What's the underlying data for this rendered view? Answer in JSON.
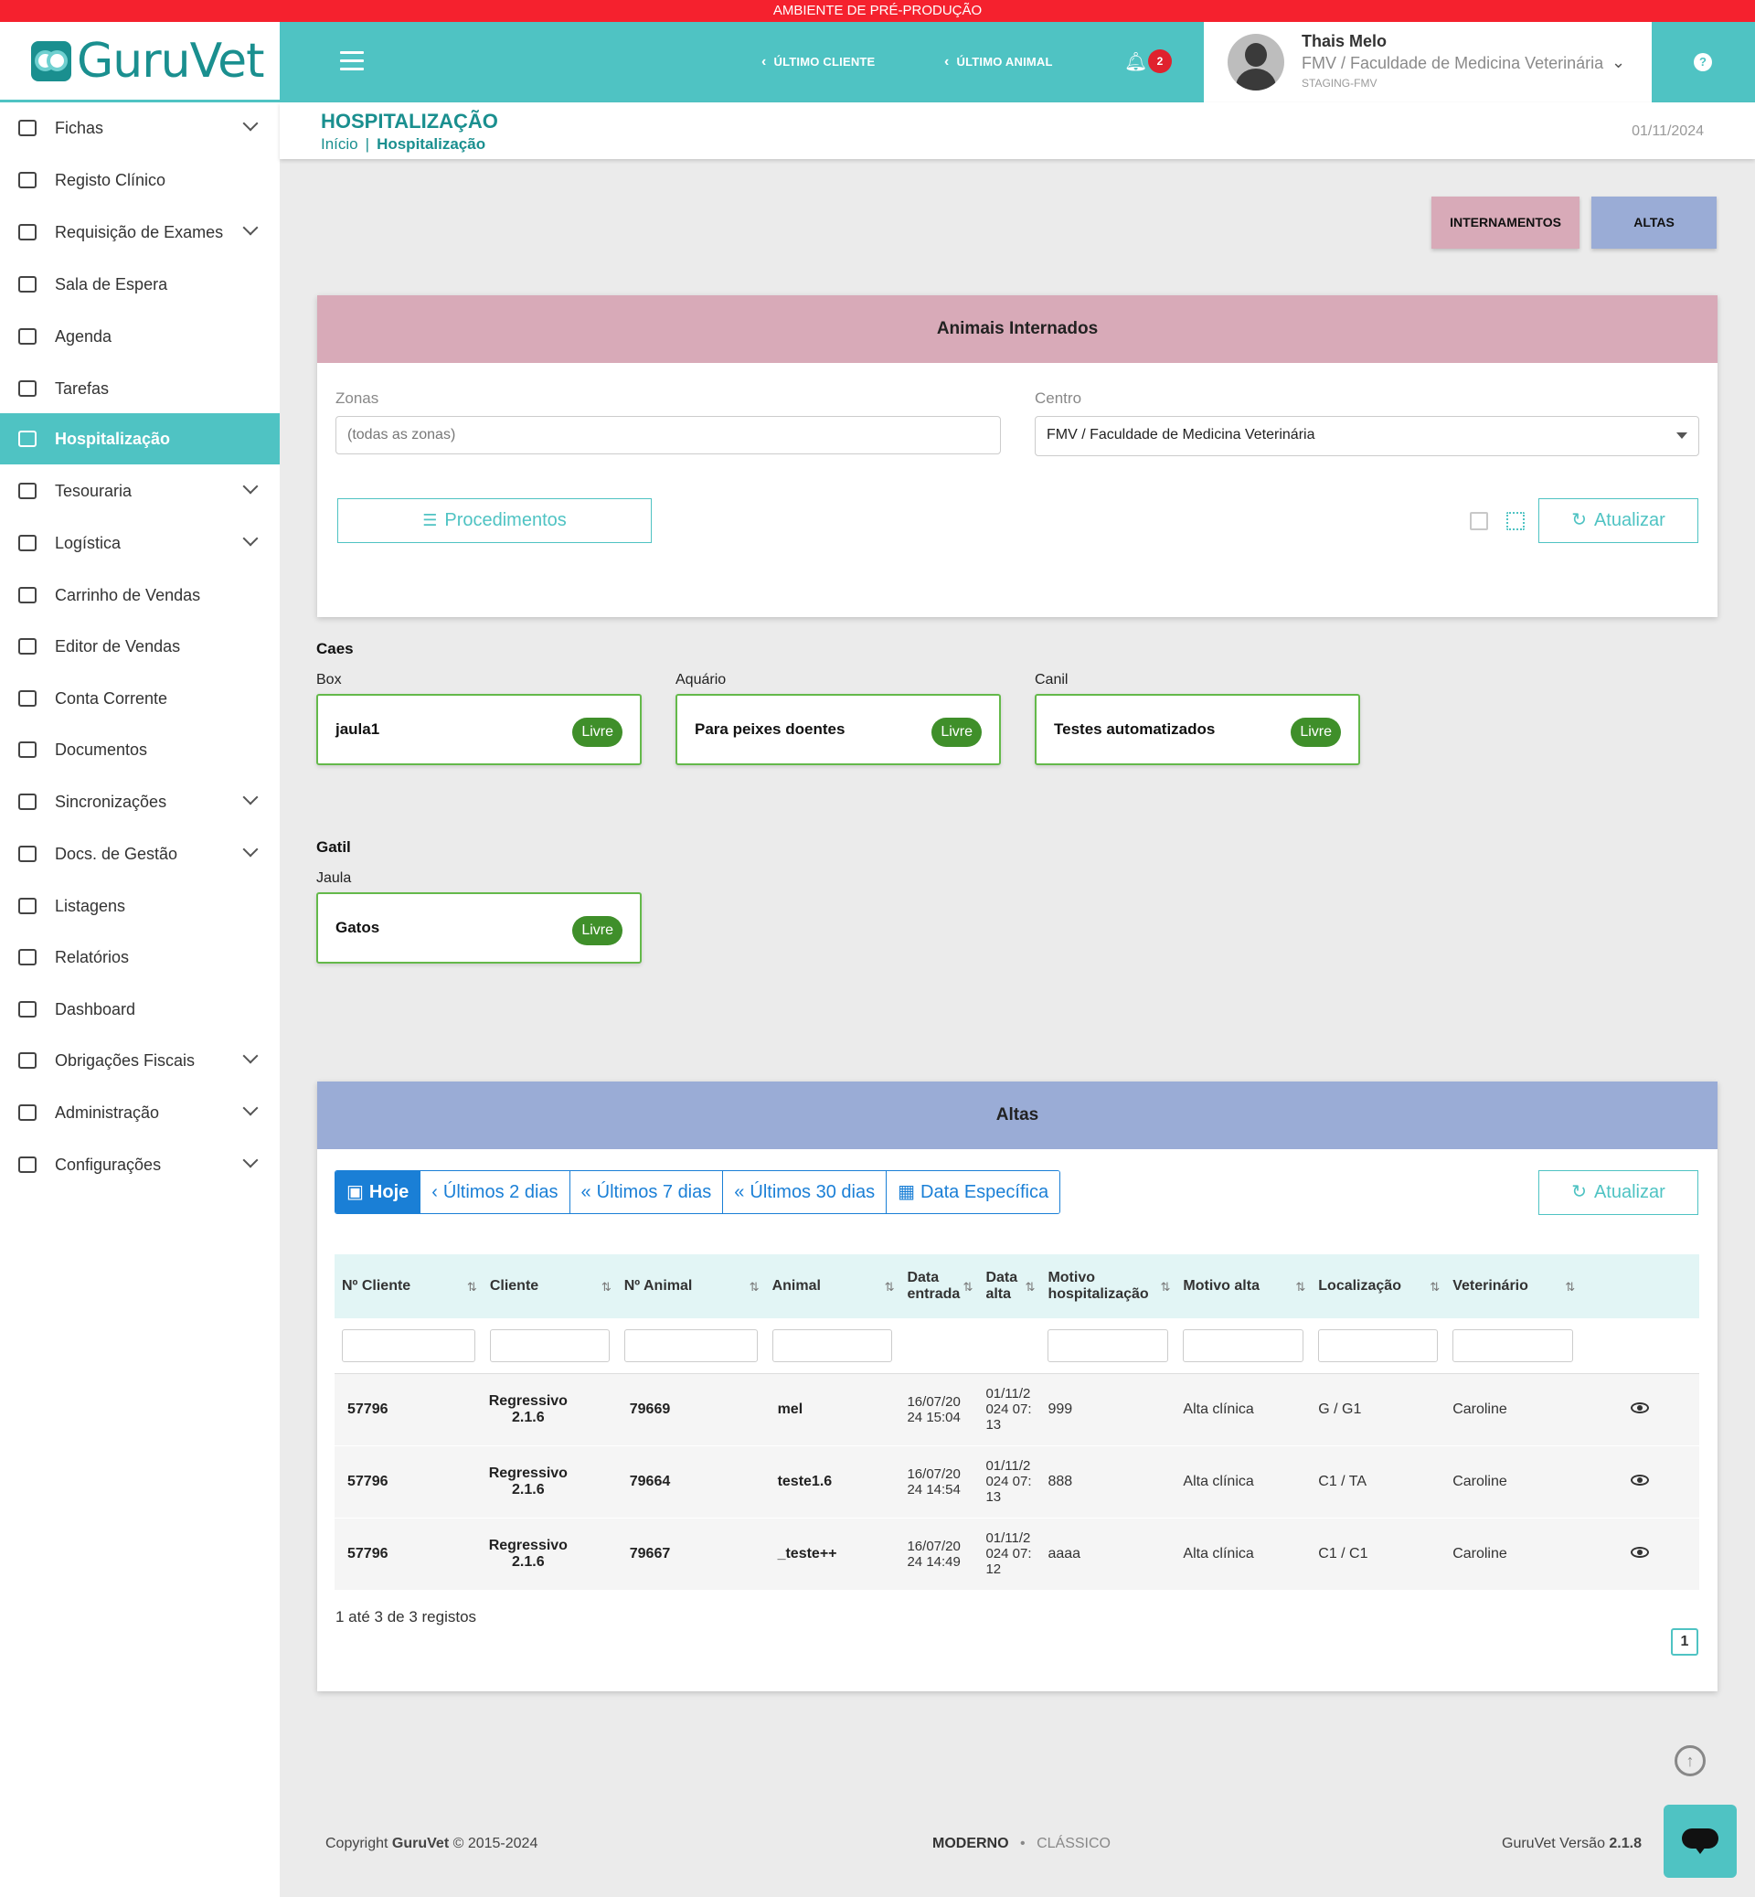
{
  "env_banner": "AMBIENTE DE PRÉ-PRODUÇÃO",
  "logo": {
    "text": "GuruVet"
  },
  "topbar": {
    "last_client": "ÚLTIMO CLIENTE",
    "last_animal": "ÚLTIMO ANIMAL",
    "notifications": "2"
  },
  "user": {
    "name": "Thais Melo",
    "org": "FMV / Faculdade de Medicina Veterinária",
    "env": "STAGING-FMV"
  },
  "help": "?",
  "sidebar": {
    "items": [
      {
        "label": "Fichas",
        "expandable": true
      },
      {
        "label": "Registo Clínico",
        "expandable": false
      },
      {
        "label": "Requisição de Exames",
        "expandable": true
      },
      {
        "label": "Sala de Espera",
        "expandable": false
      },
      {
        "label": "Agenda",
        "expandable": false
      },
      {
        "label": "Tarefas",
        "expandable": false
      },
      {
        "label": "Hospitalização",
        "expandable": false,
        "active": true
      },
      {
        "label": "Tesouraria",
        "expandable": true
      },
      {
        "label": "Logística",
        "expandable": true
      },
      {
        "label": "Carrinho de Vendas",
        "expandable": false
      },
      {
        "label": "Editor de Vendas",
        "expandable": false
      },
      {
        "label": "Conta Corrente",
        "expandable": false
      },
      {
        "label": "Documentos",
        "expandable": false
      },
      {
        "label": "Sincronizações",
        "expandable": true
      },
      {
        "label": "Docs. de Gestão",
        "expandable": true
      },
      {
        "label": "Listagens",
        "expandable": false
      },
      {
        "label": "Relatórios",
        "expandable": false
      },
      {
        "label": "Dashboard",
        "expandable": false
      },
      {
        "label": "Obrigações Fiscais",
        "expandable": true
      },
      {
        "label": "Administração",
        "expandable": true
      },
      {
        "label": "Configurações",
        "expandable": true
      }
    ]
  },
  "header": {
    "title": "HOSPITALIZAÇÃO",
    "breadcrumb_home": "Início",
    "breadcrumb_sep": "|",
    "breadcrumb_current": "Hospitalização",
    "date": "01/11/2024"
  },
  "actions": {
    "internamentos": "INTERNAMENTOS",
    "altas": "ALTAS"
  },
  "internados": {
    "title": "Animais Internados",
    "zonas_label": "Zonas",
    "zonas_placeholder": "(todas as zonas)",
    "centro_label": "Centro",
    "centro_value": "FMV / Faculdade de Medicina Veterinária",
    "procedimentos": "Procedimentos",
    "atualizar": "Atualizar"
  },
  "groups": [
    {
      "title": "Caes",
      "cages": [
        {
          "zone": "Box",
          "name": "jaula1",
          "status": "Livre"
        },
        {
          "zone": "Aquário",
          "name": "Para peixes doentes",
          "status": "Livre"
        },
        {
          "zone": "Canil",
          "name": "Testes automatizados",
          "status": "Livre"
        }
      ]
    },
    {
      "title": "Gatil",
      "cages": [
        {
          "zone": "Jaula",
          "name": "Gatos",
          "status": "Livre"
        }
      ]
    }
  ],
  "altas": {
    "title": "Altas",
    "filters": [
      "Hoje",
      "Últimos 2 dias",
      "Últimos 7 dias",
      "Últimos 30 dias",
      "Data Específica"
    ],
    "atualizar": "Atualizar",
    "columns": [
      "Nº Cliente",
      "Cliente",
      "Nº Animal",
      "Animal",
      "Data entrada",
      "Data alta",
      "Motivo hospitalização",
      "Motivo alta",
      "Localização",
      "Veterinário"
    ],
    "rows": [
      {
        "n_cliente": "57796",
        "cliente": "Regressivo 2.1.6",
        "n_animal": "79669",
        "animal": "mel",
        "data_entrada": "16/07/2024 15:04",
        "data_alta": "01/11/2024 07:13",
        "motivo_hosp": "999",
        "motivo_alta": "Alta clínica",
        "localizacao": "G / G1",
        "veterinario": "Caroline"
      },
      {
        "n_cliente": "57796",
        "cliente": "Regressivo 2.1.6",
        "n_animal": "79664",
        "animal": "teste1.6",
        "data_entrada": "16/07/2024 14:54",
        "data_alta": "01/11/2024 07:13",
        "motivo_hosp": "888",
        "motivo_alta": "Alta clínica",
        "localizacao": "C1 / TA",
        "veterinario": "Caroline"
      },
      {
        "n_cliente": "57796",
        "cliente": "Regressivo 2.1.6",
        "n_animal": "79667",
        "animal": "_teste++",
        "data_entrada": "16/07/2024 14:49",
        "data_alta": "01/11/2024 07:12",
        "motivo_hosp": "aaaa",
        "motivo_alta": "Alta clínica",
        "localizacao": "C1 / C1",
        "veterinario": "Caroline"
      }
    ],
    "records_info": "1 até 3 de 3 registos",
    "page": "1"
  },
  "footer": {
    "copyright_prefix": "Copyright ",
    "brand": "GuruVet",
    "copyright_suffix": " © 2015-2024",
    "mode_modern": "MODERNO",
    "mode_sep": "•",
    "mode_classic": "CLÁSSICO",
    "version_label": "GuruVet Versão ",
    "version": "2.1.8"
  },
  "colors": {
    "accent": "#4fc3c3",
    "env_banner": "#f5212e",
    "internamentos": "#d8aab8",
    "altas": "#9aacd6",
    "livre": "#3f8f2a",
    "filter_blue": "#1a7fd6"
  }
}
